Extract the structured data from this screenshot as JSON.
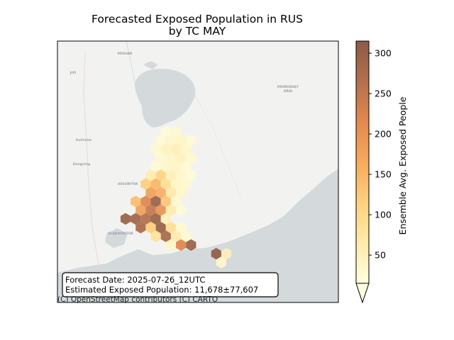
{
  "title_line1": "Forecasted Exposed Population in RUS",
  "title_line2": "by TC MAY",
  "colorbar": {
    "label": "Ensemble Avg. Exposed People",
    "min": 15,
    "max": 315,
    "ticks": [
      "50",
      "100",
      "150",
      "200",
      "250",
      "300"
    ],
    "tick_values": [
      50,
      100,
      150,
      200,
      250,
      300
    ],
    "colors": [
      "#ffffe0",
      "#ffeaa8",
      "#fdd27e",
      "#f9a95c",
      "#e2884e",
      "#b5704d",
      "#8c5a45"
    ]
  },
  "info_box": {
    "forecast_date": "Forecast Date: 2025-07-26_12UTC",
    "estimated": "Estimated Exposed Population: 11,678±77,607"
  },
  "attribution": "(C) OpenStreetMap contributors (C) CARTO",
  "map_labels": {
    "primorsky_1": "PRIMORSKY",
    "primorsky_2": "KRAI",
    "mishan": "MISHAN",
    "jixi": "JIXI",
    "suifenhe": "Suifenhe",
    "dongning": "Dongning",
    "ussuriysk": "USSURIYSK",
    "vladivostok": "VLADIVOSTOK"
  },
  "exposure_cells": [
    {
      "col": 4,
      "row": 0,
      "value": 25
    },
    {
      "col": 5,
      "row": 0,
      "value": 30
    },
    {
      "col": 3,
      "row": 1,
      "value": 25
    },
    {
      "col": 4,
      "row": 1,
      "value": 35
    },
    {
      "col": 5,
      "row": 1,
      "value": 40
    },
    {
      "col": 6,
      "row": 1,
      "value": 25
    },
    {
      "col": 3,
      "row": 2,
      "value": 30
    },
    {
      "col": 4,
      "row": 2,
      "value": 45
    },
    {
      "col": 5,
      "row": 2,
      "value": 50
    },
    {
      "col": 6,
      "row": 2,
      "value": 35
    },
    {
      "col": 3,
      "row": 3,
      "value": 30
    },
    {
      "col": 4,
      "row": 3,
      "value": 40
    },
    {
      "col": 5,
      "row": 3,
      "value": 45
    },
    {
      "col": 6,
      "row": 3,
      "value": 30
    },
    {
      "col": 3,
      "row": 4,
      "value": 25
    },
    {
      "col": 4,
      "row": 4,
      "value": 35
    },
    {
      "col": 5,
      "row": 4,
      "value": 40
    },
    {
      "col": 6,
      "row": 4,
      "value": 25
    },
    {
      "col": 2,
      "row": 5,
      "value": 60
    },
    {
      "col": 3,
      "row": 5,
      "value": 110
    },
    {
      "col": 4,
      "row": 5,
      "value": 50
    },
    {
      "col": 5,
      "row": 5,
      "value": 35
    },
    {
      "col": 6,
      "row": 5,
      "value": 25
    },
    {
      "col": 2,
      "row": 6,
      "value": 120
    },
    {
      "col": 3,
      "row": 6,
      "value": 150
    },
    {
      "col": 4,
      "row": 6,
      "value": 90
    },
    {
      "col": 5,
      "row": 6,
      "value": 40
    },
    {
      "col": 6,
      "row": 6,
      "value": 30
    },
    {
      "col": 2,
      "row": 7,
      "value": 180
    },
    {
      "col": 3,
      "row": 7,
      "value": 160
    },
    {
      "col": 4,
      "row": 7,
      "value": 70
    },
    {
      "col": 5,
      "row": 7,
      "value": 35
    },
    {
      "col": 1,
      "row": 8,
      "value": 140
    },
    {
      "col": 2,
      "row": 8,
      "value": 220
    },
    {
      "col": 3,
      "row": 8,
      "value": 300
    },
    {
      "col": 4,
      "row": 8,
      "value": 130
    },
    {
      "col": 5,
      "row": 8,
      "value": 30
    },
    {
      "col": 1,
      "row": 9,
      "value": 180
    },
    {
      "col": 2,
      "row": 9,
      "value": 250
    },
    {
      "col": 3,
      "row": 9,
      "value": 200
    },
    {
      "col": 4,
      "row": 9,
      "value": 60
    },
    {
      "col": 5,
      "row": 9,
      "value": 25
    },
    {
      "col": 0,
      "row": 10,
      "value": 300
    },
    {
      "col": 1,
      "row": 10,
      "value": 290
    },
    {
      "col": 2,
      "row": 10,
      "value": 270
    },
    {
      "col": 3,
      "row": 10,
      "value": 300
    },
    {
      "col": 4,
      "row": 10,
      "value": 50
    },
    {
      "col": 1,
      "row": 11,
      "value": 280
    },
    {
      "col": 2,
      "row": 11,
      "value": 120
    },
    {
      "col": 3,
      "row": 11,
      "value": 300
    },
    {
      "col": 4,
      "row": 11,
      "value": 90
    },
    {
      "col": 5,
      "row": 11,
      "value": 30
    },
    {
      "col": 3,
      "row": 12,
      "value": 80
    },
    {
      "col": 4,
      "row": 12,
      "value": 280
    },
    {
      "col": 5,
      "row": 12,
      "value": 60
    },
    {
      "col": 6,
      "row": 12,
      "value": 30
    },
    {
      "col": 4,
      "row": 13,
      "value": 40
    },
    {
      "col": 5,
      "row": 13,
      "value": 220
    },
    {
      "col": 6,
      "row": 13,
      "value": 300
    },
    {
      "col": 9,
      "row": 14,
      "value": 310
    },
    {
      "col": 10,
      "row": 14,
      "value": 50
    },
    {
      "col": 9,
      "row": 15,
      "value": 35
    }
  ]
}
